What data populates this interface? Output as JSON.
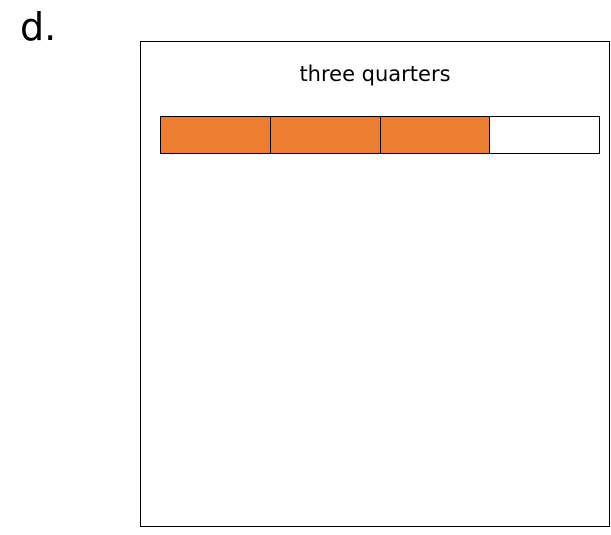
{
  "item_label": "d.",
  "fraction": {
    "caption": "three quarters",
    "parts_total": 4,
    "parts_shaded": 3,
    "shaded_color": "#ED7D31",
    "empty_color": "#FFFFFF",
    "outline_color": "#000000"
  }
}
